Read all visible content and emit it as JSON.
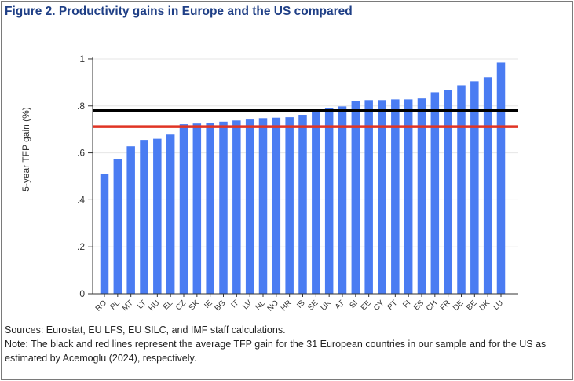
{
  "figure": {
    "title": "Figure 2. Productivity gains in Europe and the US compared",
    "source": "Sources: Eurostat, EU LFS, EU SILC, and IMF staff calculations.",
    "note": "Note: The black and red lines represent the average TFP gain for the 31 European countries in our sample and for the US as estimated by Acemoglu (2024), respectively."
  },
  "chart_data": {
    "type": "bar",
    "title": "",
    "xlabel": "",
    "ylabel": "5-year TFP gain (%)",
    "ylim": [
      0,
      1.05
    ],
    "yticks": [
      0,
      0.2,
      0.4,
      0.6,
      0.8,
      1
    ],
    "ytick_labels": [
      "0",
      ".2",
      ".4",
      ".6",
      ".8",
      "1"
    ],
    "grid": true,
    "bar_color": "#4a7cf2",
    "categories": [
      "RO",
      "PL",
      "MT",
      "LT",
      "HU",
      "EL",
      "CZ",
      "SK",
      "IE",
      "BG",
      "IT",
      "LV",
      "NL",
      "NO",
      "HR",
      "IS",
      "SE",
      "UK",
      "AT",
      "SI",
      "EE",
      "CY",
      "PT",
      "FI",
      "ES",
      "CH",
      "FR",
      "DE",
      "BE",
      "DK",
      "LU"
    ],
    "values": [
      0.51,
      0.575,
      0.628,
      0.655,
      0.66,
      0.678,
      0.722,
      0.725,
      0.728,
      0.733,
      0.738,
      0.742,
      0.748,
      0.75,
      0.752,
      0.762,
      0.778,
      0.79,
      0.798,
      0.822,
      0.825,
      0.825,
      0.828,
      0.828,
      0.832,
      0.858,
      0.868,
      0.888,
      0.905,
      0.922,
      0.985
    ],
    "reference_lines": [
      {
        "value": 0.78,
        "color": "#000000"
      },
      {
        "value": 0.712,
        "color": "#e03424"
      }
    ]
  }
}
